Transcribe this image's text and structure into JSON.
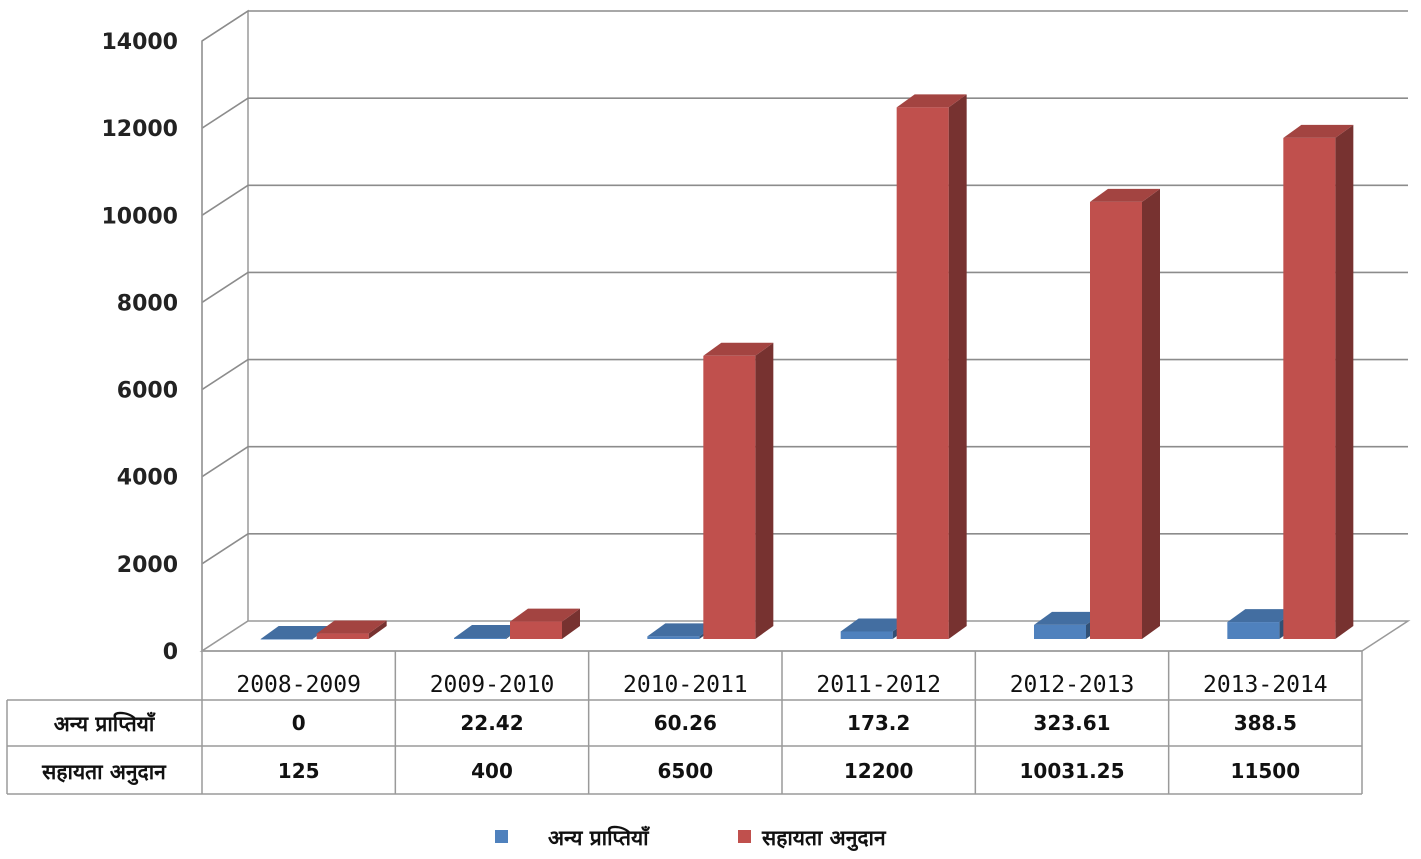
{
  "chart_data": {
    "type": "bar",
    "title": "",
    "xlabel": "",
    "ylabel": "",
    "ylim": [
      0,
      14000
    ],
    "yticks": [
      0,
      2000,
      4000,
      6000,
      8000,
      10000,
      12000,
      14000
    ],
    "grid": true,
    "three_d": true,
    "legend_position": "bottom",
    "categories": [
      "2008-2009",
      "2009-2010",
      "2010-2011",
      "2011-2012",
      "2012-2013",
      "2013-2014"
    ],
    "series": [
      {
        "name": "अन्य प्राप्तियाँ",
        "color": "#4f81bd",
        "values": [
          0,
          22.42,
          60.26,
          173.2,
          323.61,
          388.5
        ],
        "labels": [
          "0",
          "22.42",
          "60.26",
          "173.2",
          "323.61",
          "388.5"
        ]
      },
      {
        "name": "सहायता अनुदान",
        "color": "#c0504d",
        "values": [
          125,
          400,
          6500,
          12200,
          10031.25,
          11500
        ],
        "labels": [
          "125",
          "400",
          "6500",
          "12200",
          "10031.25",
          "11500"
        ]
      }
    ]
  }
}
